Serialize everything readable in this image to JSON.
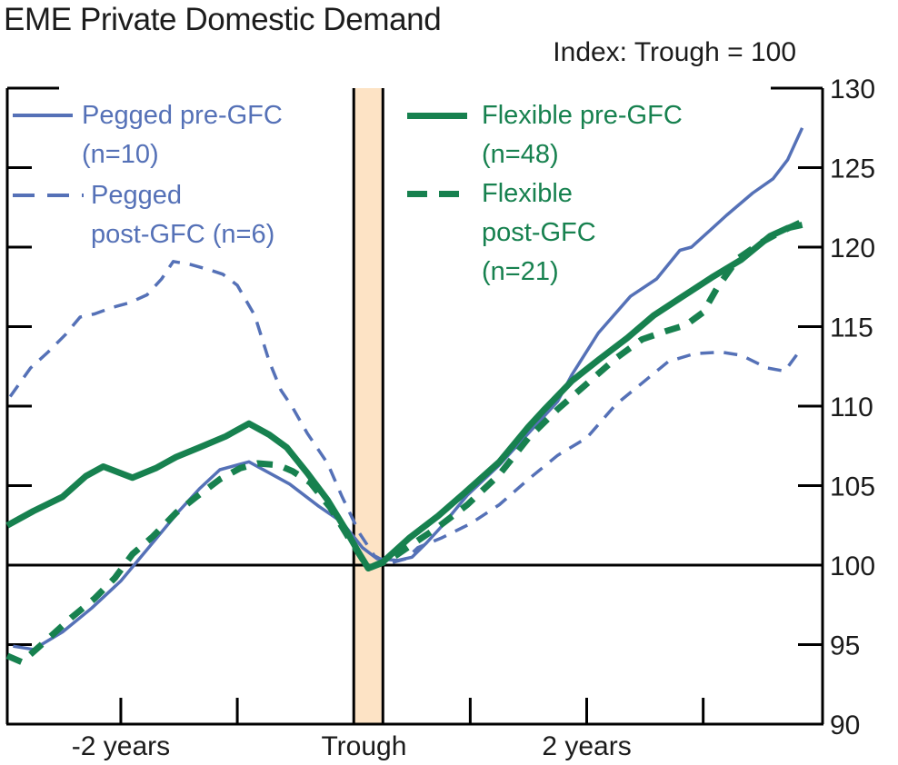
{
  "title": "EME Private Domestic Demand",
  "subtitle": "Index: Trough = 100",
  "colors": {
    "pegged_blue": "#5571b7",
    "flexible_green": "#17814f",
    "trough_band_fill": "#fde3c5",
    "axis_black": "#000000",
    "text": "#1b1b1b"
  },
  "legend": {
    "pegged_pre": {
      "line1": "Pegged pre-GFC",
      "line2": "(n=10)"
    },
    "pegged_post": {
      "line1": "Pegged",
      "line2": "post-GFC (n=6)"
    },
    "flexible_pre": {
      "line1": "Flexible pre-GFC",
      "line2": "(n=48)"
    },
    "flexible_post": {
      "line1": "Flexible",
      "line2": "post-GFC",
      "line3": "(n=21)"
    }
  },
  "chart_data": {
    "type": "line",
    "title": "EME Private Domestic Demand",
    "subtitle": "Index: Trough = 100",
    "x_unit": "quarters relative to trough",
    "x_axis": {
      "min": -11.9,
      "max": 16.1,
      "ticks": [
        -8,
        -4,
        4,
        8,
        12
      ],
      "labels": [
        {
          "pos": -8,
          "text": "-2 years"
        },
        {
          "pos": 0.35,
          "text": "Trough"
        },
        {
          "pos": 8,
          "text": "2 years"
        }
      ]
    },
    "y_axis": {
      "min": 90,
      "max": 130,
      "tick_labels": [
        130,
        125,
        120,
        115,
        110,
        105,
        100,
        95,
        90
      ],
      "side_tick_values": [
        95,
        105,
        110,
        115,
        120,
        125
      ],
      "baseline_value": 100
    },
    "trough_band": {
      "from": 0,
      "to": 1
    },
    "grid": false,
    "legend_position": "top-inside",
    "series": [
      {
        "name": "pegged_post_gfc",
        "label": "Pegged post-GFC (n=6)",
        "color": "#5571b7",
        "dashed": true,
        "width": 3.5,
        "points": [
          [
            -11.8,
            110.6
          ],
          [
            -11.1,
            112.4
          ],
          [
            -10.5,
            113.4
          ],
          [
            -9.9,
            114.5
          ],
          [
            -9.4,
            115.6
          ],
          [
            -8.9,
            115.8
          ],
          [
            -8.3,
            116.2
          ],
          [
            -7.7,
            116.5
          ],
          [
            -7.1,
            117.0
          ],
          [
            -6.6,
            118.0
          ],
          [
            -6.2,
            119.1
          ],
          [
            -5.6,
            118.9
          ],
          [
            -5.0,
            118.6
          ],
          [
            -4.5,
            118.3
          ],
          [
            -4.0,
            117.6
          ],
          [
            -3.4,
            115.7
          ],
          [
            -2.9,
            112.8
          ],
          [
            -2.5,
            111.0
          ],
          [
            -2.1,
            109.9
          ],
          [
            -1.6,
            108.3
          ],
          [
            -0.9,
            106.4
          ],
          [
            -0.4,
            104.3
          ],
          [
            0.2,
            102.0
          ],
          [
            0.7,
            100.6
          ],
          [
            1.2,
            100.1
          ],
          [
            1.8,
            100.4
          ],
          [
            2.2,
            101.1
          ],
          [
            3.0,
            101.7
          ],
          [
            4.0,
            102.6
          ],
          [
            5.0,
            103.8
          ],
          [
            6.0,
            105.4
          ],
          [
            7.0,
            106.9
          ],
          [
            8.0,
            108.0
          ],
          [
            9.0,
            110.1
          ],
          [
            9.8,
            111.3
          ],
          [
            10.8,
            112.8
          ],
          [
            11.7,
            113.3
          ],
          [
            12.6,
            113.4
          ],
          [
            13.3,
            113.2
          ],
          [
            14.2,
            112.4
          ],
          [
            14.8,
            112.2
          ],
          [
            15.4,
            113.7
          ]
        ]
      },
      {
        "name": "pegged_pre_gfc",
        "label": "Pegged pre-GFC (n=10)",
        "color": "#5571b7",
        "dashed": false,
        "width": 3.5,
        "points": [
          [
            -11.7,
            94.9
          ],
          [
            -11.0,
            94.7
          ],
          [
            -10.0,
            95.8
          ],
          [
            -9.0,
            97.3
          ],
          [
            -8.0,
            99.0
          ],
          [
            -7.0,
            101.2
          ],
          [
            -6.0,
            103.4
          ],
          [
            -5.3,
            104.8
          ],
          [
            -4.6,
            106.0
          ],
          [
            -3.6,
            106.5
          ],
          [
            -2.8,
            105.7
          ],
          [
            -2.2,
            105.1
          ],
          [
            -1.2,
            103.7
          ],
          [
            -0.4,
            102.7
          ],
          [
            0.3,
            101.1
          ],
          [
            0.8,
            100.4
          ],
          [
            1.5,
            100.3
          ],
          [
            2.0,
            100.5
          ],
          [
            2.5,
            101.4
          ],
          [
            3.0,
            102.4
          ],
          [
            3.9,
            104.4
          ],
          [
            5.0,
            106.3
          ],
          [
            6.0,
            108.3
          ],
          [
            6.5,
            109.3
          ],
          [
            7.0,
            110.3
          ],
          [
            7.5,
            112.0
          ],
          [
            8.4,
            114.6
          ],
          [
            9.5,
            116.9
          ],
          [
            10.4,
            118.0
          ],
          [
            11.2,
            119.8
          ],
          [
            11.6,
            120.0
          ],
          [
            12.2,
            121.0
          ],
          [
            12.8,
            122.0
          ],
          [
            13.7,
            123.4
          ],
          [
            14.4,
            124.3
          ],
          [
            14.9,
            125.5
          ],
          [
            15.4,
            127.5
          ]
        ]
      },
      {
        "name": "flexible_pre_gfc",
        "label": "Flexible pre-GFC (n=48)",
        "color": "#17814f",
        "dashed": false,
        "width": 7,
        "points": [
          [
            -11.9,
            102.5
          ],
          [
            -11.0,
            103.4
          ],
          [
            -10.0,
            104.3
          ],
          [
            -9.2,
            105.6
          ],
          [
            -8.6,
            106.2
          ],
          [
            -7.6,
            105.5
          ],
          [
            -6.8,
            106.1
          ],
          [
            -6.1,
            106.8
          ],
          [
            -5.3,
            107.4
          ],
          [
            -4.4,
            108.1
          ],
          [
            -3.6,
            108.9
          ],
          [
            -2.9,
            108.2
          ],
          [
            -2.3,
            107.4
          ],
          [
            -1.6,
            105.8
          ],
          [
            -0.9,
            104.1
          ],
          [
            -0.3,
            102.3
          ],
          [
            0.2,
            100.7
          ],
          [
            0.5,
            99.8
          ],
          [
            1.0,
            100.2
          ],
          [
            1.9,
            101.7
          ],
          [
            2.9,
            103.1
          ],
          [
            3.9,
            104.7
          ],
          [
            5.0,
            106.5
          ],
          [
            6.0,
            108.7
          ],
          [
            6.5,
            109.7
          ],
          [
            7.5,
            111.6
          ],
          [
            8.4,
            112.9
          ],
          [
            9.4,
            114.3
          ],
          [
            10.3,
            115.7
          ],
          [
            11.3,
            116.9
          ],
          [
            12.3,
            118.1
          ],
          [
            13.3,
            119.2
          ],
          [
            14.3,
            120.7
          ],
          [
            14.9,
            121.2
          ],
          [
            15.4,
            121.4
          ]
        ]
      },
      {
        "name": "flexible_post_gfc",
        "label": "Flexible post-GFC (n=21)",
        "color": "#17814f",
        "dashed": true,
        "width": 7,
        "points": [
          [
            -11.9,
            94.3
          ],
          [
            -11.4,
            93.9
          ],
          [
            -10.6,
            95.2
          ],
          [
            -9.7,
            96.7
          ],
          [
            -8.9,
            97.9
          ],
          [
            -8.2,
            99.2
          ],
          [
            -7.6,
            100.7
          ],
          [
            -6.9,
            101.8
          ],
          [
            -6.1,
            103.3
          ],
          [
            -5.4,
            104.3
          ],
          [
            -4.6,
            105.4
          ],
          [
            -3.9,
            106.1
          ],
          [
            -3.3,
            106.4
          ],
          [
            -2.6,
            106.3
          ],
          [
            -2.1,
            105.9
          ],
          [
            -1.5,
            105.2
          ],
          [
            -0.8,
            103.6
          ],
          [
            -0.2,
            101.8
          ],
          [
            0.5,
            99.8
          ],
          [
            1.2,
            100.3
          ],
          [
            2.0,
            101.3
          ],
          [
            2.9,
            102.4
          ],
          [
            3.9,
            103.8
          ],
          [
            5.0,
            105.7
          ],
          [
            6.0,
            108.0
          ],
          [
            7.0,
            109.8
          ],
          [
            8.0,
            111.4
          ],
          [
            9.0,
            113.0
          ],
          [
            9.9,
            114.2
          ],
          [
            10.7,
            114.7
          ],
          [
            11.4,
            115.1
          ],
          [
            12.0,
            115.9
          ],
          [
            12.5,
            117.5
          ],
          [
            13.2,
            119.3
          ],
          [
            14.0,
            120.3
          ],
          [
            14.7,
            121.0
          ],
          [
            15.4,
            121.6
          ]
        ]
      }
    ]
  }
}
